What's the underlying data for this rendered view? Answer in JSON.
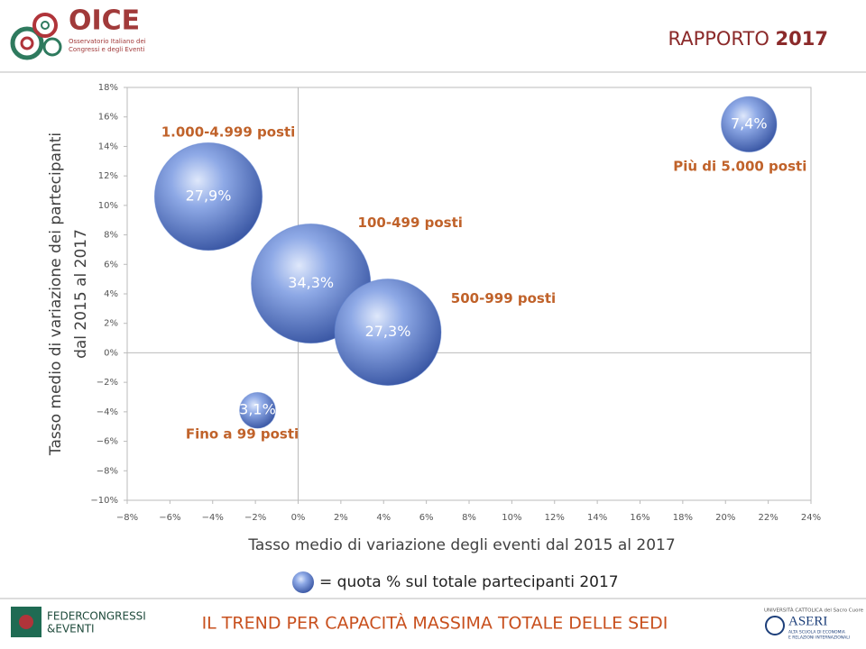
{
  "header": {
    "logo": "OICE",
    "logo_subtitle": [
      "Osservatorio Italiano dei",
      "Congressi e degli Eventi"
    ],
    "report": "RAPPORTO",
    "year": "2017"
  },
  "footer": {
    "left_logo": [
      "FEDERCONGRESSI",
      "&EVENTI"
    ],
    "title": "IL TREND PER CAPACITÀ MASSIMA TOTALE DELLE SEDI",
    "right_logo_top": "UNIVERSITÀ CATTOLICA del Sacro Cuore",
    "right_logo": "ASERI",
    "right_logo_sub": [
      "ALTA SCUOLA DI ECONOMIA",
      "E RELAZIONI INTERNAZIONALI"
    ]
  },
  "chart_data": {
    "type": "bubble",
    "xlabel": "Tasso medio di variazione degli eventi dal 2015 al 2017",
    "ylabel": [
      "Tasso medio di variazione dei partecipanti",
      "dal 2015 al 2017"
    ],
    "legend": "= quota % sul totale partecipanti 2017",
    "color": "#5b7fd0",
    "categories": [
      "1.000-4.999 posti",
      "100-499 posti",
      "500-999 posti",
      "Fino a 99 posti",
      "Più di 5.000 posti"
    ],
    "x": [
      -4.2,
      0.6,
      4.2,
      -1.9,
      21.1
    ],
    "values": [
      10.6,
      4.7,
      1.4,
      -3.9,
      15.5
    ],
    "sizes": [
      27.9,
      34.3,
      27.3,
      3.1,
      7.4
    ],
    "value_labels": [
      "27,9%",
      "34,3%",
      "27,3%",
      "3,1%",
      "7,4%"
    ],
    "xlim": [
      -8,
      24
    ],
    "xticks": [
      {
        "value": -8,
        "label": "−8%"
      },
      {
        "value": -6,
        "label": "−6%"
      },
      {
        "value": -4,
        "label": "−4%"
      },
      {
        "value": -2,
        "label": "−2%"
      },
      {
        "value": 0,
        "label": "0%"
      },
      {
        "value": 2,
        "label": "2%"
      },
      {
        "value": 4,
        "label": "4%"
      },
      {
        "value": 6,
        "label": "6%"
      },
      {
        "value": 8,
        "label": "8%"
      },
      {
        "value": 10,
        "label": "10%"
      },
      {
        "value": 12,
        "label": "12%"
      },
      {
        "value": 14,
        "label": "14%"
      },
      {
        "value": 16,
        "label": "16%"
      },
      {
        "value": 18,
        "label": "18%"
      },
      {
        "value": 20,
        "label": "20%"
      },
      {
        "value": 22,
        "label": "22%"
      },
      {
        "value": 24,
        "label": "24%"
      }
    ],
    "ylim": [
      -10,
      18
    ],
    "yticks": [
      {
        "value": -10,
        "label": "−10%"
      },
      {
        "value": -8,
        "label": "−8%"
      },
      {
        "value": -6,
        "label": "−6%"
      },
      {
        "value": -4,
        "label": "−4%"
      },
      {
        "value": -2,
        "label": "−2%"
      },
      {
        "value": 0,
        "label": "0%"
      },
      {
        "value": 2,
        "label": "2%"
      },
      {
        "value": 4,
        "label": "4%"
      },
      {
        "value": 6,
        "label": "6%"
      },
      {
        "value": 8,
        "label": "8%"
      },
      {
        "value": 10,
        "label": "10%"
      },
      {
        "value": 12,
        "label": "12%"
      },
      {
        "value": 14,
        "label": "14%"
      },
      {
        "value": 16,
        "label": "16%"
      },
      {
        "value": 18,
        "label": "18%"
      }
    ]
  }
}
